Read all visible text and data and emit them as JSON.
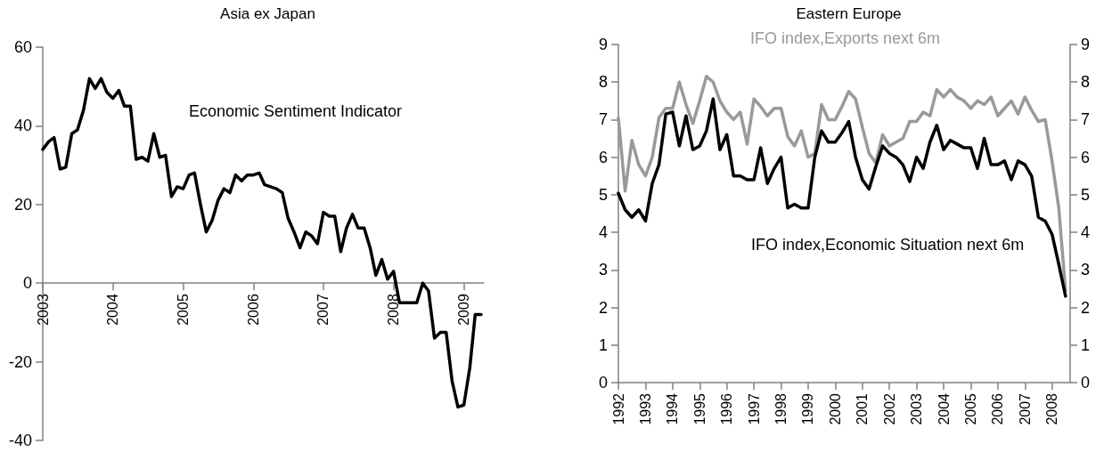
{
  "chart_data": [
    {
      "type": "line",
      "title": "Asia ex Japan",
      "marker": "none",
      "line_style": "solid",
      "grid": false,
      "x": [
        "2003-01",
        "2003-02",
        "2003-03",
        "2003-04",
        "2003-05",
        "2003-06",
        "2003-07",
        "2003-08",
        "2003-09",
        "2003-10",
        "2003-11",
        "2003-12",
        "2004-01",
        "2004-02",
        "2004-03",
        "2004-04",
        "2004-05",
        "2004-06",
        "2004-07",
        "2004-08",
        "2004-09",
        "2004-10",
        "2004-11",
        "2004-12",
        "2005-01",
        "2005-02",
        "2005-03",
        "2005-04",
        "2005-05",
        "2005-06",
        "2005-07",
        "2005-08",
        "2005-09",
        "2005-10",
        "2005-11",
        "2005-12",
        "2006-01",
        "2006-02",
        "2006-03",
        "2006-04",
        "2006-05",
        "2006-06",
        "2006-07",
        "2006-08",
        "2006-09",
        "2006-10",
        "2006-11",
        "2006-12",
        "2007-01",
        "2007-02",
        "2007-03",
        "2007-04",
        "2007-05",
        "2007-06",
        "2007-07",
        "2007-08",
        "2007-09",
        "2007-10",
        "2007-11",
        "2007-12",
        "2008-01",
        "2008-02",
        "2008-03",
        "2008-04",
        "2008-05",
        "2008-06",
        "2008-07",
        "2008-08",
        "2008-09",
        "2008-10",
        "2008-11",
        "2008-12",
        "2009-01",
        "2009-02",
        "2009-03",
        "2009-04"
      ],
      "series": [
        {
          "name": "Economic Sentiment Indicator",
          "color": "#000000",
          "values": [
            34,
            36,
            37,
            29,
            29.5,
            38,
            39,
            44,
            52,
            49.5,
            52,
            48.5,
            47,
            49,
            45,
            45,
            31.5,
            32,
            31,
            38,
            32,
            32.5,
            22,
            24.5,
            24,
            27.5,
            28,
            20,
            13,
            16,
            21,
            24,
            23,
            27.5,
            26,
            27.5,
            27.5,
            28,
            25,
            24.5,
            24,
            23,
            16.5,
            13,
            9,
            13,
            12,
            10,
            18,
            17,
            17,
            8,
            14,
            17.5,
            14,
            14,
            9,
            2,
            6,
            1,
            3,
            -5,
            -5,
            -5,
            -5,
            0,
            -2,
            -14,
            -12.5,
            -12.5,
            -25,
            -31.5,
            -31,
            -21.5,
            -8,
            -8
          ]
        }
      ],
      "xlim": [
        "2003-01",
        "2009-04-15"
      ],
      "xticks": [
        "2003",
        "2004",
        "2005",
        "2006",
        "2007",
        "2008",
        "2009"
      ],
      "ylim": [
        -40,
        60
      ],
      "yticks": [
        -40,
        -20,
        0,
        20,
        40,
        60
      ]
    },
    {
      "type": "line",
      "title": "Eastern Europe",
      "marker": "none",
      "line_style": "solid",
      "grid": false,
      "x": [
        "1992-01",
        "1992-04",
        "1992-07",
        "1992-10",
        "1993-01",
        "1993-04",
        "1993-07",
        "1993-10",
        "1994-01",
        "1994-04",
        "1994-07",
        "1994-10",
        "1995-01",
        "1995-04",
        "1995-07",
        "1995-10",
        "1996-01",
        "1996-04",
        "1996-07",
        "1996-10",
        "1997-01",
        "1997-04",
        "1997-07",
        "1997-10",
        "1998-01",
        "1998-04",
        "1998-07",
        "1998-10",
        "1999-01",
        "1999-04",
        "1999-07",
        "1999-10",
        "2000-01",
        "2000-04",
        "2000-07",
        "2000-10",
        "2001-01",
        "2001-04",
        "2001-07",
        "2001-10",
        "2002-01",
        "2002-04",
        "2002-07",
        "2002-10",
        "2003-01",
        "2003-04",
        "2003-07",
        "2003-10",
        "2004-01",
        "2004-04",
        "2004-07",
        "2004-10",
        "2005-01",
        "2005-04",
        "2005-07",
        "2005-10",
        "2006-01",
        "2006-04",
        "2006-07",
        "2006-10",
        "2007-01",
        "2007-04",
        "2007-07",
        "2007-10",
        "2008-01",
        "2008-04",
        "2008-07"
      ],
      "series": [
        {
          "name": "IFO index,Exports next 6m",
          "color": "#999999",
          "values": [
            7.05,
            5.1,
            6.45,
            5.8,
            5.5,
            6.0,
            7.05,
            7.3,
            7.3,
            8.0,
            7.4,
            6.9,
            7.5,
            8.15,
            8.0,
            7.5,
            7.2,
            7.0,
            7.2,
            6.35,
            7.55,
            7.35,
            7.1,
            7.3,
            7.3,
            6.55,
            6.3,
            6.7,
            6.0,
            6.1,
            7.4,
            7.0,
            7.0,
            7.35,
            7.75,
            7.55,
            6.8,
            6.1,
            5.85,
            6.6,
            6.3,
            6.4,
            6.5,
            6.95,
            6.95,
            7.2,
            7.1,
            7.8,
            7.6,
            7.8,
            7.6,
            7.5,
            7.3,
            7.5,
            7.4,
            7.6,
            7.1,
            7.3,
            7.5,
            7.15,
            7.6,
            7.25,
            6.95,
            7.0,
            5.9,
            4.65,
            2.45
          ]
        },
        {
          "name": "IFO index,Economic Situation next 6m",
          "color": "#000000",
          "values": [
            5.04,
            4.6,
            4.4,
            4.6,
            4.3,
            5.3,
            5.8,
            7.15,
            7.2,
            6.3,
            7.1,
            6.2,
            6.3,
            6.7,
            7.55,
            6.2,
            6.6,
            5.5,
            5.5,
            5.4,
            5.4,
            6.25,
            5.3,
            5.7,
            6.0,
            4.65,
            4.75,
            4.65,
            4.65,
            6.0,
            6.7,
            6.4,
            6.4,
            6.65,
            6.95,
            6.0,
            5.4,
            5.15,
            5.75,
            6.3,
            6.1,
            6.0,
            5.8,
            5.35,
            6.0,
            5.7,
            6.4,
            6.85,
            6.2,
            6.45,
            6.35,
            6.25,
            6.25,
            5.7,
            6.5,
            5.8,
            5.8,
            5.9,
            5.4,
            5.9,
            5.8,
            5.5,
            4.4,
            4.3,
            3.95,
            3.15,
            2.3
          ]
        }
      ],
      "xlim": [
        "1992-01",
        "2008-09"
      ],
      "xticks": [
        "1992",
        "1993",
        "1994",
        "1995",
        "1996",
        "1997",
        "1998",
        "1999",
        "2000",
        "2001",
        "2002",
        "2003",
        "2004",
        "2005",
        "2006",
        "2007",
        "2008"
      ],
      "ylim": [
        0,
        9
      ],
      "yticks": [
        0,
        1,
        2,
        3,
        4,
        5,
        6,
        7,
        8,
        9
      ],
      "y2lim": [
        0,
        9
      ],
      "y2ticks": [
        0,
        1,
        2,
        3,
        4,
        5,
        6,
        7,
        8,
        9
      ]
    }
  ]
}
